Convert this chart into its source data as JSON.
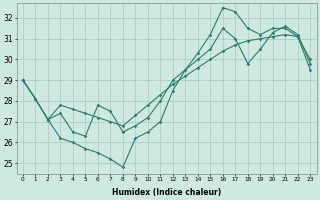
{
  "xlabel": "Humidex (Indice chaleur)",
  "bg_color": "#cfe8e0",
  "grid_color": "#aac8c0",
  "line_color": "#2a7d6e",
  "xlim": [
    -0.5,
    23.5
  ],
  "ylim": [
    24.5,
    32.7
  ],
  "xticks": [
    0,
    1,
    2,
    3,
    4,
    5,
    6,
    7,
    8,
    9,
    10,
    11,
    12,
    13,
    14,
    15,
    16,
    17,
    18,
    19,
    20,
    21,
    22,
    23
  ],
  "yticks": [
    25,
    26,
    27,
    28,
    29,
    30,
    31,
    32
  ],
  "line1_x": [
    0,
    1,
    2,
    3,
    4,
    5,
    6,
    7,
    8,
    9,
    10,
    11,
    12,
    13,
    14,
    15,
    16,
    17,
    18,
    19,
    20,
    21,
    22,
    23
  ],
  "line1_y": [
    29.0,
    28.1,
    27.1,
    27.8,
    27.6,
    27.4,
    27.2,
    27.0,
    26.8,
    27.3,
    27.8,
    28.3,
    28.8,
    29.2,
    29.6,
    30.0,
    30.4,
    30.7,
    30.9,
    31.0,
    31.1,
    31.2,
    31.1,
    29.5
  ],
  "line2_x": [
    0,
    1,
    2,
    3,
    4,
    5,
    6,
    7,
    8,
    9,
    10,
    11,
    12,
    13,
    14,
    15,
    16,
    17,
    18,
    19,
    20,
    21,
    22,
    23
  ],
  "line2_y": [
    29.0,
    28.1,
    27.1,
    26.2,
    26.0,
    25.7,
    25.5,
    25.2,
    24.8,
    26.2,
    26.5,
    27.0,
    28.5,
    29.5,
    30.3,
    31.2,
    32.5,
    32.3,
    31.5,
    31.2,
    31.5,
    31.5,
    31.1,
    30.0
  ],
  "line3_x": [
    0,
    1,
    2,
    3,
    4,
    5,
    6,
    7,
    8,
    9,
    10,
    11,
    12,
    13,
    14,
    15,
    16,
    17,
    18,
    19,
    20,
    21,
    22,
    23
  ],
  "line3_y": [
    29.0,
    28.1,
    27.1,
    27.4,
    26.5,
    26.3,
    27.8,
    27.5,
    26.5,
    26.8,
    27.2,
    28.0,
    29.0,
    29.5,
    30.0,
    30.5,
    31.5,
    31.0,
    29.8,
    30.5,
    31.3,
    31.6,
    31.2,
    29.8
  ]
}
